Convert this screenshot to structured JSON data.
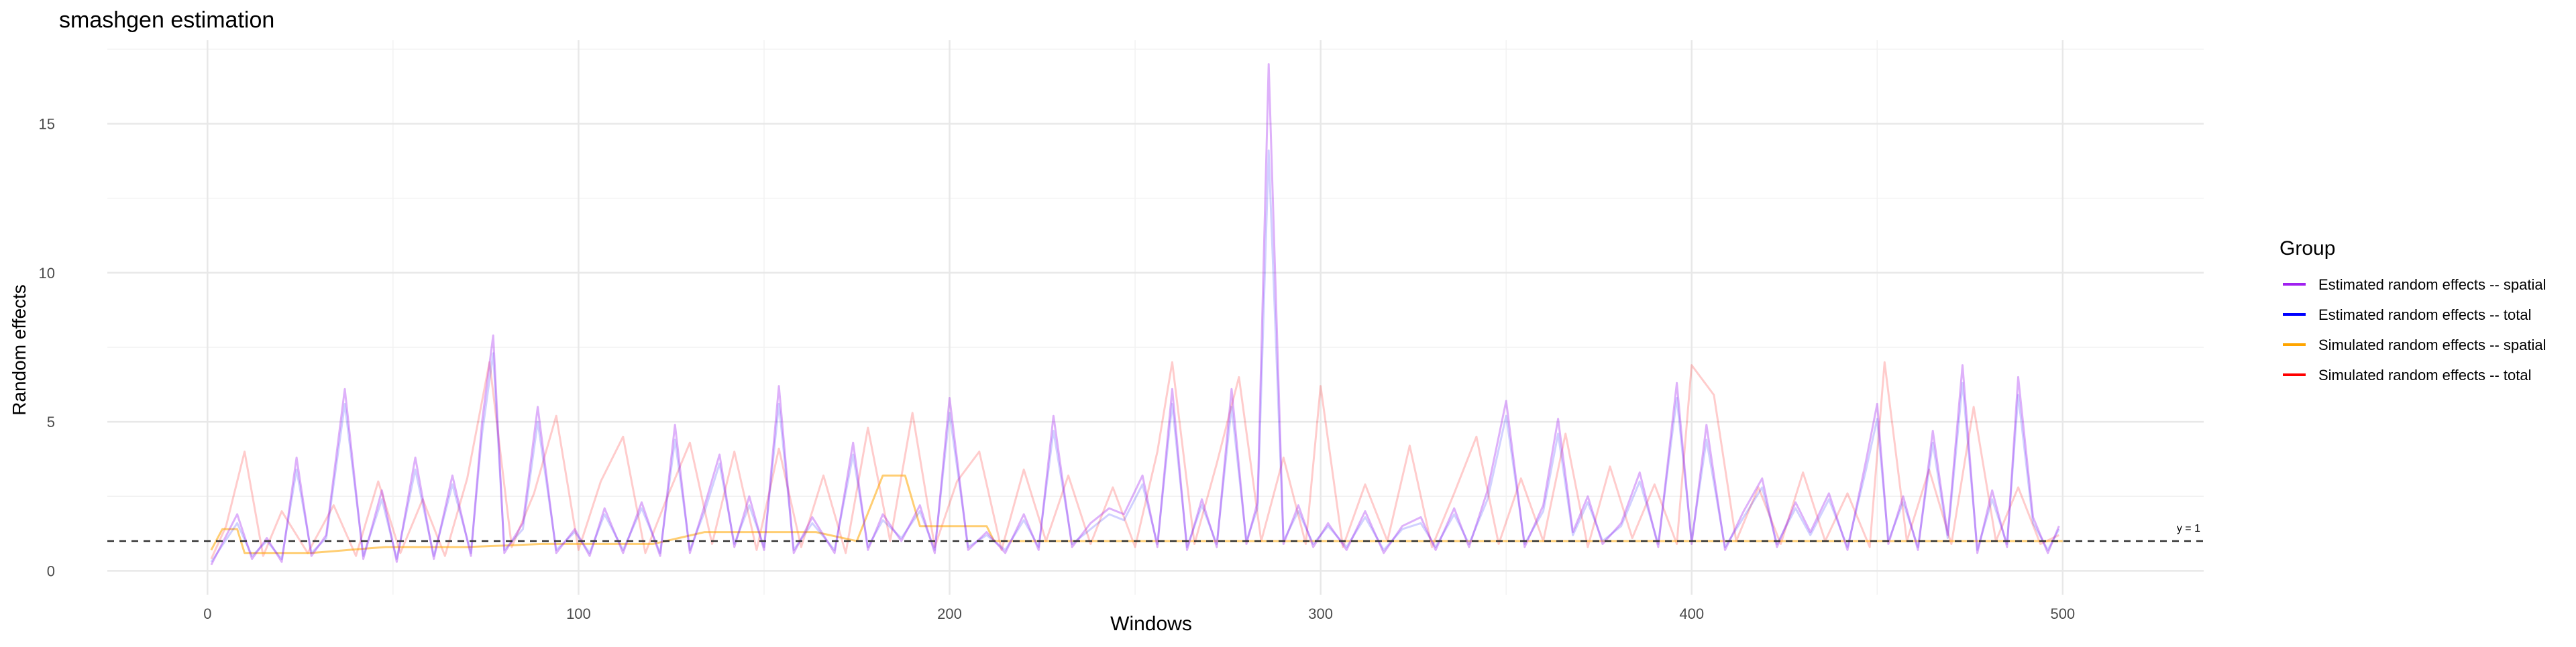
{
  "chart_data": {
    "type": "line",
    "title": "smashgen estimation",
    "xlabel": "Windows",
    "ylabel": "Random effects",
    "xlim": [
      -27,
      538
    ],
    "ylim": [
      -0.8,
      17.8
    ],
    "x_ticks": [
      0,
      100,
      200,
      300,
      400,
      500
    ],
    "y_ticks": [
      0,
      5,
      10,
      15
    ],
    "grid": true,
    "legend": {
      "title": "Group",
      "position": "right",
      "entries": [
        {
          "label": "Estimated random effects -- spatial",
          "color": "#a020f0"
        },
        {
          "label": "Estimated random effects -- total",
          "color": "#0000ff"
        },
        {
          "label": "Simulated random effects -- spatial",
          "color": "#ffa500"
        },
        {
          "label": "Simulated random effects -- total",
          "color": "#ff0000"
        }
      ]
    },
    "reference_line": {
      "y": 1,
      "label": "y = 1",
      "style": "dashed"
    },
    "series": [
      {
        "name": "Estimated random effects -- spatial",
        "color": "#a020f0",
        "x": [
          1,
          8,
          12,
          16,
          20,
          24,
          28,
          32,
          37,
          42,
          47,
          51,
          56,
          61,
          66,
          71,
          74,
          77,
          80,
          85,
          89,
          94,
          99,
          103,
          107,
          112,
          117,
          122,
          126,
          130,
          134,
          138,
          142,
          146,
          150,
          154,
          158,
          163,
          169,
          174,
          178,
          182,
          187,
          192,
          196,
          200,
          205,
          210,
          215,
          220,
          224,
          228,
          233,
          238,
          243,
          247,
          252,
          256,
          260,
          264,
          268,
          272,
          276,
          280,
          283,
          286,
          290,
          294,
          298,
          302,
          307,
          312,
          317,
          322,
          327,
          331,
          336,
          340,
          345,
          350,
          355,
          360,
          364,
          368,
          372,
          376,
          381,
          386,
          391,
          396,
          400,
          404,
          409,
          414,
          419,
          423,
          428,
          432,
          437,
          442,
          447,
          450,
          453,
          457,
          461,
          465,
          469,
          473,
          477,
          481,
          485,
          488,
          492,
          496,
          499
        ],
        "y": [
          0.2,
          1.9,
          0.4,
          1.1,
          0.3,
          3.8,
          0.5,
          1.2,
          6.1,
          0.4,
          2.7,
          0.3,
          3.8,
          0.4,
          3.2,
          0.5,
          5.0,
          7.9,
          0.6,
          1.6,
          5.5,
          0.6,
          1.4,
          0.5,
          2.1,
          0.6,
          2.3,
          0.5,
          4.9,
          0.6,
          2.2,
          3.9,
          0.8,
          2.5,
          0.7,
          6.2,
          0.6,
          1.8,
          0.6,
          4.3,
          0.7,
          1.9,
          1.0,
          2.2,
          0.6,
          5.8,
          0.7,
          1.3,
          0.6,
          1.9,
          0.7,
          5.2,
          0.8,
          1.6,
          2.1,
          1.9,
          3.2,
          0.8,
          6.1,
          0.7,
          2.4,
          0.8,
          6.1,
          0.9,
          2.3,
          17.0,
          0.9,
          2.2,
          0.8,
          1.6,
          0.7,
          2.0,
          0.6,
          1.5,
          1.8,
          0.7,
          2.1,
          0.8,
          2.7,
          5.7,
          0.8,
          2.2,
          5.1,
          1.3,
          2.5,
          0.9,
          1.6,
          3.3,
          0.8,
          6.3,
          0.9,
          4.9,
          0.7,
          2.0,
          3.1,
          0.8,
          2.3,
          1.3,
          2.6,
          0.7,
          3.7,
          5.6,
          0.9,
          2.5,
          0.7,
          4.7,
          1.2,
          6.9,
          0.6,
          2.7,
          0.8,
          6.5,
          1.8,
          0.6,
          1.5
        ]
      },
      {
        "name": "Estimated random effects -- total",
        "color": "#0000ff",
        "x": [
          1,
          8,
          12,
          16,
          20,
          24,
          28,
          32,
          37,
          42,
          47,
          51,
          56,
          61,
          66,
          71,
          74,
          77,
          80,
          85,
          89,
          94,
          99,
          103,
          107,
          112,
          117,
          122,
          126,
          130,
          134,
          138,
          142,
          146,
          150,
          154,
          158,
          163,
          169,
          174,
          178,
          182,
          187,
          192,
          196,
          200,
          205,
          210,
          215,
          220,
          224,
          228,
          233,
          238,
          243,
          247,
          252,
          256,
          260,
          264,
          268,
          272,
          276,
          280,
          283,
          286,
          290,
          294,
          298,
          302,
          307,
          312,
          317,
          322,
          327,
          331,
          336,
          340,
          345,
          350,
          355,
          360,
          364,
          368,
          372,
          376,
          381,
          386,
          391,
          396,
          400,
          404,
          409,
          414,
          419,
          423,
          428,
          432,
          437,
          442,
          447,
          450,
          453,
          457,
          461,
          465,
          469,
          473,
          477,
          481,
          485,
          488,
          492,
          496,
          499
        ],
        "y": [
          0.3,
          1.6,
          0.5,
          1.0,
          0.4,
          3.4,
          0.6,
          1.1,
          5.6,
          0.5,
          2.4,
          0.4,
          3.4,
          0.5,
          2.9,
          0.6,
          4.6,
          7.3,
          0.7,
          1.4,
          5.0,
          0.7,
          1.3,
          0.6,
          1.9,
          0.7,
          2.1,
          0.6,
          4.4,
          0.7,
          2.0,
          3.6,
          0.9,
          2.2,
          0.8,
          5.6,
          0.7,
          1.6,
          0.7,
          3.9,
          0.8,
          1.7,
          1.1,
          2.0,
          0.7,
          5.3,
          0.8,
          1.2,
          0.7,
          1.7,
          0.8,
          4.7,
          0.9,
          1.4,
          1.9,
          1.7,
          2.9,
          0.9,
          5.6,
          0.8,
          2.2,
          0.9,
          5.5,
          1.0,
          2.1,
          14.1,
          1.0,
          2.0,
          0.9,
          1.5,
          0.8,
          1.8,
          0.7,
          1.4,
          1.6,
          0.8,
          1.9,
          0.9,
          2.4,
          5.2,
          0.9,
          2.0,
          4.6,
          1.2,
          2.3,
          1.0,
          1.5,
          3.0,
          0.9,
          5.8,
          1.0,
          4.4,
          0.8,
          1.8,
          2.8,
          0.9,
          2.1,
          1.2,
          2.4,
          0.8,
          3.4,
          5.1,
          1.0,
          2.3,
          0.8,
          4.3,
          1.1,
          6.3,
          0.7,
          2.4,
          0.9,
          5.9,
          1.6,
          0.7,
          1.4
        ]
      },
      {
        "name": "Simulated random effects -- spatial",
        "color": "#ffa500",
        "x": [
          1,
          4,
          8,
          10,
          18,
          28,
          38,
          48,
          70,
          90,
          120,
          134,
          150,
          164,
          175,
          182,
          188,
          192,
          200,
          210,
          212,
          230,
          260,
          290,
          320,
          350,
          380,
          410,
          440,
          470,
          500
        ],
        "y": [
          0.7,
          1.4,
          1.4,
          0.6,
          0.6,
          0.6,
          0.7,
          0.8,
          0.8,
          0.9,
          0.9,
          1.3,
          1.3,
          1.3,
          1.0,
          3.2,
          3.2,
          1.5,
          1.5,
          1.5,
          1.0,
          1.0,
          1.0,
          1.0,
          1.0,
          1.0,
          1.0,
          1.0,
          1.0,
          1.0,
          1.0
        ]
      },
      {
        "name": "Simulated random effects -- total",
        "color": "#ff0000",
        "x": [
          1,
          5,
          10,
          15,
          20,
          27,
          34,
          40,
          46,
          52,
          58,
          64,
          70,
          76,
          82,
          88,
          94,
          100,
          106,
          112,
          118,
          124,
          130,
          136,
          142,
          148,
          154,
          160,
          166,
          172,
          178,
          184,
          190,
          196,
          202,
          208,
          214,
          220,
          226,
          232,
          238,
          244,
          250,
          256,
          260,
          266,
          272,
          278,
          284,
          290,
          296,
          300,
          306,
          312,
          318,
          324,
          330,
          336,
          342,
          348,
          354,
          360,
          366,
          372,
          378,
          384,
          390,
          396,
          400,
          406,
          412,
          418,
          424,
          430,
          436,
          442,
          448,
          452,
          458,
          464,
          470,
          476,
          482,
          488,
          494,
          499
        ],
        "y": [
          0.4,
          1.5,
          4.0,
          0.5,
          2.0,
          0.6,
          2.2,
          0.5,
          3.0,
          0.6,
          2.4,
          0.5,
          3.1,
          7.0,
          0.8,
          2.6,
          5.2,
          0.7,
          3.0,
          4.5,
          0.6,
          2.5,
          4.3,
          0.9,
          4.0,
          0.7,
          4.1,
          0.8,
          3.2,
          0.6,
          4.8,
          1.0,
          5.3,
          0.8,
          3.0,
          4.0,
          0.7,
          3.4,
          1.0,
          3.2,
          0.9,
          2.8,
          0.8,
          4.0,
          7.0,
          0.9,
          3.6,
          6.5,
          1.0,
          3.8,
          0.9,
          6.2,
          0.8,
          2.9,
          1.0,
          4.2,
          0.8,
          2.6,
          4.5,
          0.9,
          3.1,
          1.0,
          4.6,
          0.8,
          3.5,
          1.1,
          2.9,
          0.9,
          6.9,
          5.9,
          1.0,
          2.8,
          0.9,
          3.3,
          1.0,
          2.6,
          0.8,
          7.0,
          1.0,
          3.4,
          0.9,
          5.5,
          1.0,
          2.8,
          0.9,
          1.2
        ]
      }
    ]
  }
}
